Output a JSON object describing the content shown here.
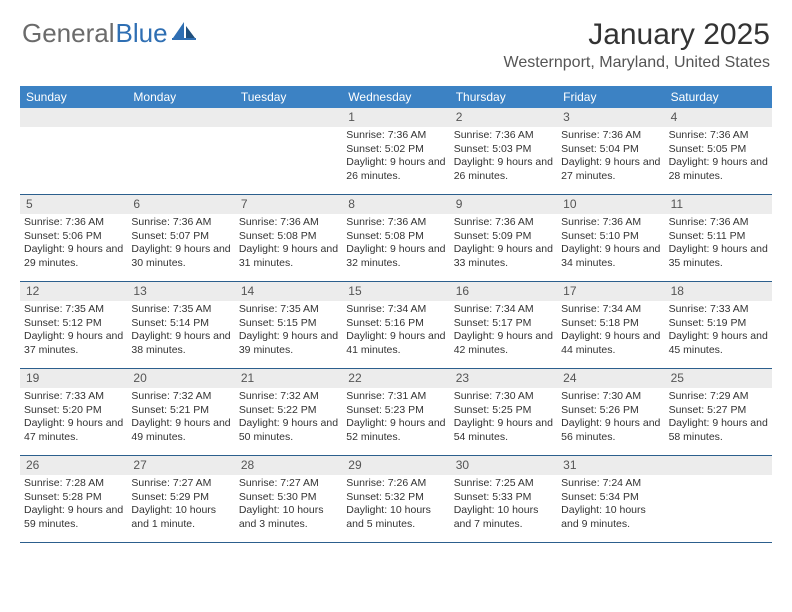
{
  "logo": {
    "part1": "General",
    "part2": "Blue"
  },
  "header": {
    "month_title": "January 2025",
    "location": "Westernport, Maryland, United States"
  },
  "style": {
    "header_bg": "#3c82c4",
    "header_text": "#ffffff",
    "daynum_bg": "#ececec",
    "row_border": "#2c5f8d",
    "body_text": "#333333",
    "logo_gray": "#6b6b6b",
    "logo_blue": "#2f6fb3"
  },
  "days_of_week": [
    "Sunday",
    "Monday",
    "Tuesday",
    "Wednesday",
    "Thursday",
    "Friday",
    "Saturday"
  ],
  "weeks": [
    [
      null,
      null,
      null,
      {
        "n": "1",
        "sr": "7:36 AM",
        "ss": "5:02 PM",
        "dl": "9 hours and 26 minutes."
      },
      {
        "n": "2",
        "sr": "7:36 AM",
        "ss": "5:03 PM",
        "dl": "9 hours and 26 minutes."
      },
      {
        "n": "3",
        "sr": "7:36 AM",
        "ss": "5:04 PM",
        "dl": "9 hours and 27 minutes."
      },
      {
        "n": "4",
        "sr": "7:36 AM",
        "ss": "5:05 PM",
        "dl": "9 hours and 28 minutes."
      }
    ],
    [
      {
        "n": "5",
        "sr": "7:36 AM",
        "ss": "5:06 PM",
        "dl": "9 hours and 29 minutes."
      },
      {
        "n": "6",
        "sr": "7:36 AM",
        "ss": "5:07 PM",
        "dl": "9 hours and 30 minutes."
      },
      {
        "n": "7",
        "sr": "7:36 AM",
        "ss": "5:08 PM",
        "dl": "9 hours and 31 minutes."
      },
      {
        "n": "8",
        "sr": "7:36 AM",
        "ss": "5:08 PM",
        "dl": "9 hours and 32 minutes."
      },
      {
        "n": "9",
        "sr": "7:36 AM",
        "ss": "5:09 PM",
        "dl": "9 hours and 33 minutes."
      },
      {
        "n": "10",
        "sr": "7:36 AM",
        "ss": "5:10 PM",
        "dl": "9 hours and 34 minutes."
      },
      {
        "n": "11",
        "sr": "7:36 AM",
        "ss": "5:11 PM",
        "dl": "9 hours and 35 minutes."
      }
    ],
    [
      {
        "n": "12",
        "sr": "7:35 AM",
        "ss": "5:12 PM",
        "dl": "9 hours and 37 minutes."
      },
      {
        "n": "13",
        "sr": "7:35 AM",
        "ss": "5:14 PM",
        "dl": "9 hours and 38 minutes."
      },
      {
        "n": "14",
        "sr": "7:35 AM",
        "ss": "5:15 PM",
        "dl": "9 hours and 39 minutes."
      },
      {
        "n": "15",
        "sr": "7:34 AM",
        "ss": "5:16 PM",
        "dl": "9 hours and 41 minutes."
      },
      {
        "n": "16",
        "sr": "7:34 AM",
        "ss": "5:17 PM",
        "dl": "9 hours and 42 minutes."
      },
      {
        "n": "17",
        "sr": "7:34 AM",
        "ss": "5:18 PM",
        "dl": "9 hours and 44 minutes."
      },
      {
        "n": "18",
        "sr": "7:33 AM",
        "ss": "5:19 PM",
        "dl": "9 hours and 45 minutes."
      }
    ],
    [
      {
        "n": "19",
        "sr": "7:33 AM",
        "ss": "5:20 PM",
        "dl": "9 hours and 47 minutes."
      },
      {
        "n": "20",
        "sr": "7:32 AM",
        "ss": "5:21 PM",
        "dl": "9 hours and 49 minutes."
      },
      {
        "n": "21",
        "sr": "7:32 AM",
        "ss": "5:22 PM",
        "dl": "9 hours and 50 minutes."
      },
      {
        "n": "22",
        "sr": "7:31 AM",
        "ss": "5:23 PM",
        "dl": "9 hours and 52 minutes."
      },
      {
        "n": "23",
        "sr": "7:30 AM",
        "ss": "5:25 PM",
        "dl": "9 hours and 54 minutes."
      },
      {
        "n": "24",
        "sr": "7:30 AM",
        "ss": "5:26 PM",
        "dl": "9 hours and 56 minutes."
      },
      {
        "n": "25",
        "sr": "7:29 AM",
        "ss": "5:27 PM",
        "dl": "9 hours and 58 minutes."
      }
    ],
    [
      {
        "n": "26",
        "sr": "7:28 AM",
        "ss": "5:28 PM",
        "dl": "9 hours and 59 minutes."
      },
      {
        "n": "27",
        "sr": "7:27 AM",
        "ss": "5:29 PM",
        "dl": "10 hours and 1 minute."
      },
      {
        "n": "28",
        "sr": "7:27 AM",
        "ss": "5:30 PM",
        "dl": "10 hours and 3 minutes."
      },
      {
        "n": "29",
        "sr": "7:26 AM",
        "ss": "5:32 PM",
        "dl": "10 hours and 5 minutes."
      },
      {
        "n": "30",
        "sr": "7:25 AM",
        "ss": "5:33 PM",
        "dl": "10 hours and 7 minutes."
      },
      {
        "n": "31",
        "sr": "7:24 AM",
        "ss": "5:34 PM",
        "dl": "10 hours and 9 minutes."
      },
      null
    ]
  ],
  "labels": {
    "sunrise": "Sunrise:",
    "sunset": "Sunset:",
    "daylight": "Daylight:"
  }
}
